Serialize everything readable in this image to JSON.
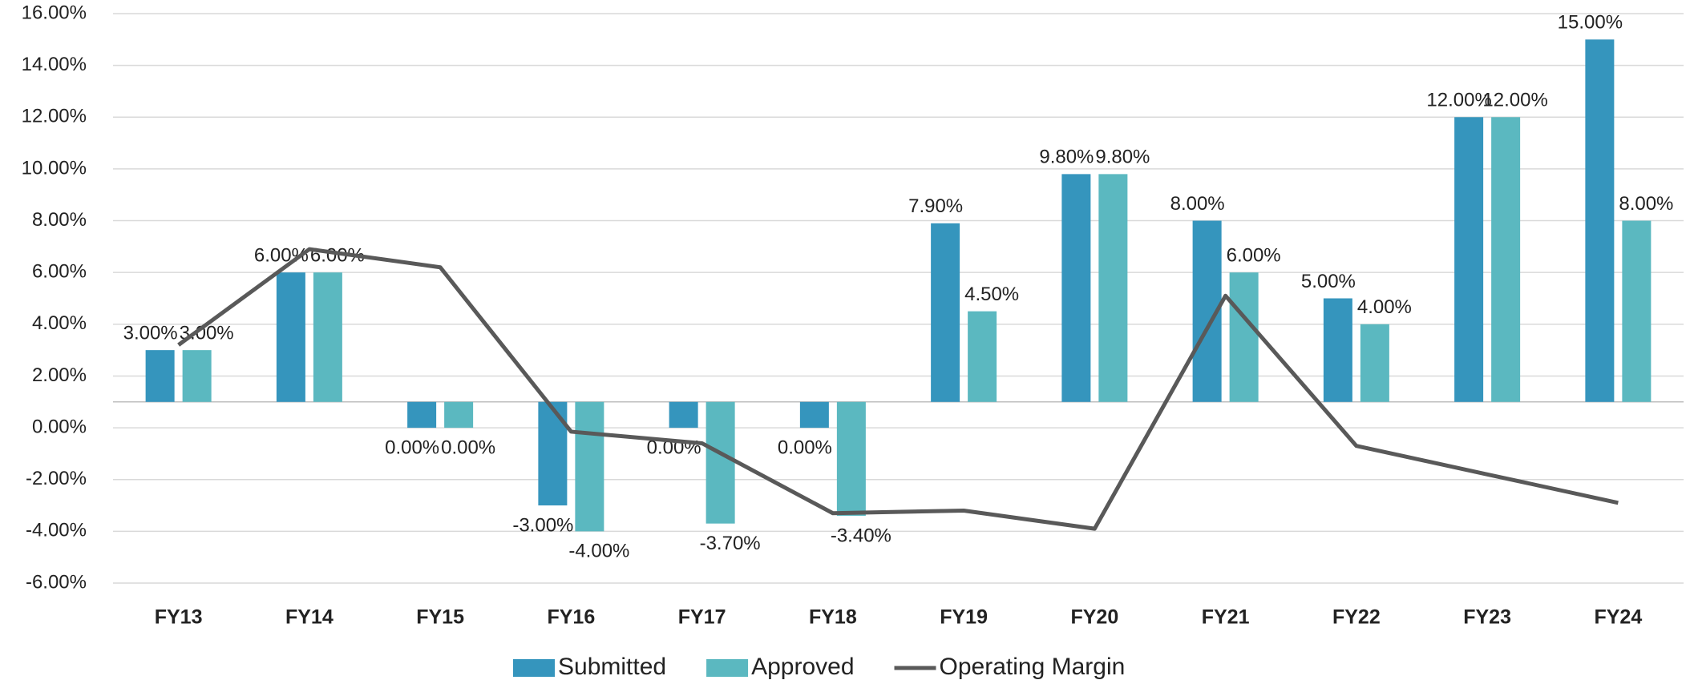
{
  "chart_data": {
    "type": "bar",
    "categories": [
      "FY13",
      "FY14",
      "FY15",
      "FY16",
      "FY17",
      "FY18",
      "FY19",
      "FY20",
      "FY21",
      "FY22",
      "FY23",
      "FY24"
    ],
    "series": [
      {
        "name": "Submitted",
        "type": "bar",
        "color": "#3595bd",
        "values": [
          3,
          6,
          0,
          -3,
          0,
          0,
          7.9,
          9.8,
          8,
          5,
          12,
          15
        ],
        "value_labels": [
          "3.00%",
          "6.00%",
          "0.00%",
          "-3.00%",
          "0.00%",
          "0.00%",
          "7.90%",
          "9.80%",
          "8.00%",
          "5.00%",
          "12.00%",
          "15.00%"
        ]
      },
      {
        "name": "Approved",
        "type": "bar",
        "color": "#5bb8c0",
        "values": [
          3,
          6,
          0,
          -4,
          -3.7,
          -3.4,
          4.5,
          9.8,
          6,
          4,
          12,
          8
        ],
        "value_labels": [
          "3.00%",
          "6.00%",
          "0.00%",
          "-4.00%",
          "-3.70%",
          "-3.40%",
          "4.50%",
          "9.80%",
          "6.00%",
          "4.00%",
          "12.00%",
          "8.00%"
        ]
      },
      {
        "name": "Operating Margin",
        "type": "line",
        "color": "#595959",
        "values": [
          3.2,
          6.9,
          6.2,
          -0.15,
          -0.6,
          -3.3,
          -3.2,
          -3.9,
          5.1,
          -0.7,
          -1.8,
          -2.9
        ]
      }
    ],
    "ylim": [
      -6,
      16
    ],
    "yticks": [
      {
        "value": -6,
        "label": "-6.00%"
      },
      {
        "value": -4,
        "label": "-4.00%"
      },
      {
        "value": -2,
        "label": "-2.00%"
      },
      {
        "value": 0,
        "label": "0.00%"
      },
      {
        "value": 2,
        "label": "2.00%"
      },
      {
        "value": 4,
        "label": "4.00%"
      },
      {
        "value": 6,
        "label": "6.00%"
      },
      {
        "value": 8,
        "label": "8.00%"
      },
      {
        "value": 10,
        "label": "10.00%"
      },
      {
        "value": 12,
        "label": "12.00%"
      },
      {
        "value": 14,
        "label": "14.00%"
      },
      {
        "value": 16,
        "label": "16.00%"
      }
    ],
    "x_axis_crosses_at": 1,
    "grid": true,
    "legend": "bottom"
  }
}
